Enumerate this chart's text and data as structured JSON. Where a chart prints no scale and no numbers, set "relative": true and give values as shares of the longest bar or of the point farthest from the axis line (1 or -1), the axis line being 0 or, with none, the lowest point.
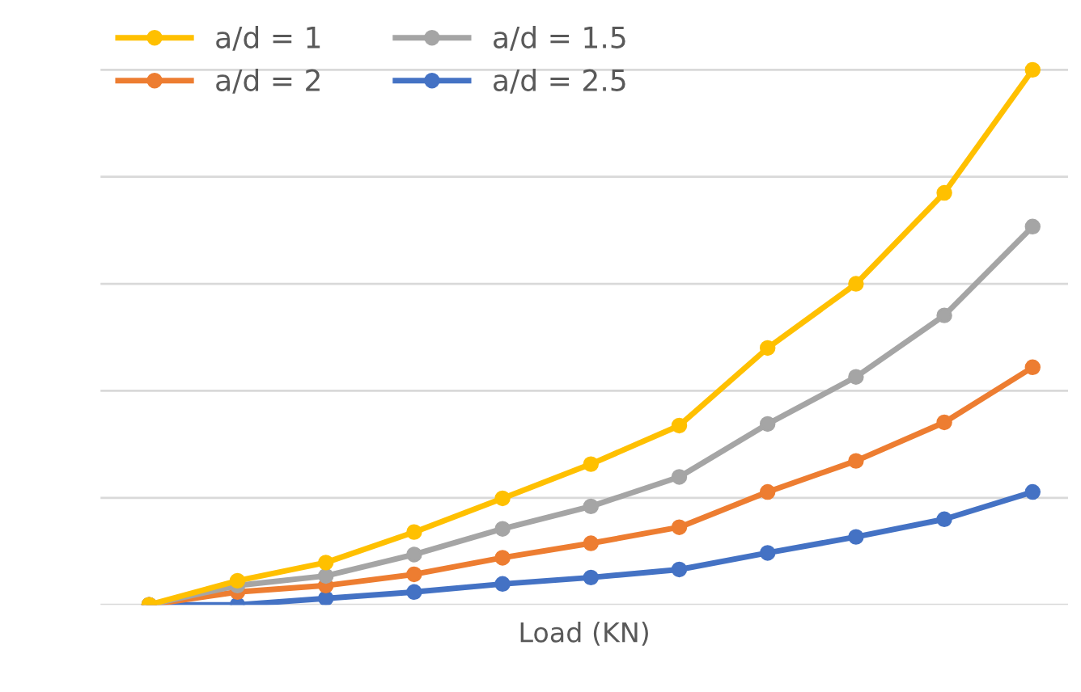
{
  "chart_data": {
    "type": "line",
    "relative": true,
    "xlabel": "Load (KN)",
    "categories": [
      null,
      null,
      null,
      null,
      null,
      null,
      null,
      null,
      null,
      null,
      null
    ],
    "series": [
      {
        "name": "a/d = 1",
        "color": "#ffc000",
        "values": [
          0,
          0.045,
          0.079,
          0.136,
          0.199,
          0.263,
          0.335,
          0.48,
          0.6,
          0.77,
          1
        ]
      },
      {
        "name": "a/d = 1.5",
        "color": "#a5a5a5",
        "values": [
          0,
          0.036,
          0.054,
          0.094,
          0.142,
          0.184,
          0.239,
          0.338,
          0.426,
          0.541,
          0.707
        ]
      },
      {
        "name": "a/d = 2",
        "color": "#ed7d31",
        "values": [
          0,
          0.024,
          0.036,
          0.057,
          0.088,
          0.115,
          0.145,
          0.211,
          0.269,
          0.341,
          0.444
        ]
      },
      {
        "name": "a/d = 2.5",
        "color": "#4472c4",
        "values": [
          0,
          0,
          0.012,
          0.024,
          0.039,
          0.051,
          0.066,
          0.097,
          0.127,
          0.16,
          0.211
        ]
      }
    ],
    "grid": "y",
    "legend": "top left",
    "marker": "circle",
    "line_style": "solid"
  }
}
